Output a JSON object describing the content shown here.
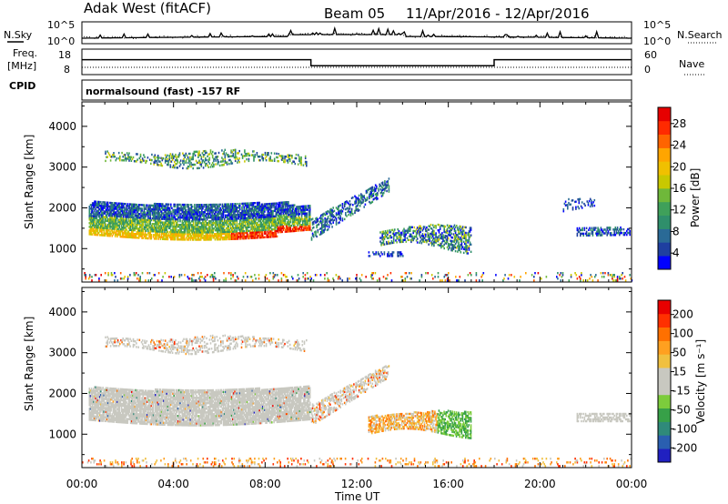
{
  "header": {
    "station": "Adak West (fitACF)",
    "beam": "Beam 05",
    "date_range": "11/Apr/2016 - 12/Apr/2016"
  },
  "noise_panel": {
    "left_label": "N.Sky",
    "right_label": "N.Search",
    "left_ticks": [
      "10^5",
      "10^0"
    ],
    "right_ticks": [
      "10^5",
      "10^0"
    ]
  },
  "freq_panel": {
    "left_label_1": "Freq.",
    "left_label_2": "[MHz]",
    "right_label": "Nave",
    "left_ticks": [
      "18",
      "8"
    ],
    "right_ticks": [
      "60",
      "0"
    ]
  },
  "cpid_panel": {
    "label": "CPID",
    "text": "normalsound (fast) -157 RF"
  },
  "x_axis": {
    "label": "Time UT",
    "ticks": [
      "00:00",
      "04:00",
      "08:00",
      "12:00",
      "16:00",
      "20:00",
      "00:00"
    ]
  },
  "power_panel": {
    "ylabel": "Slant Range [km]",
    "yticks": [
      "4000",
      "3000",
      "2000",
      "1000"
    ],
    "colorbar_label": "Power [dB]",
    "colorbar_ticks": [
      "28",
      "24",
      "20",
      "16",
      "12",
      "8",
      "4"
    ],
    "colors": [
      "#0000ff",
      "#1f3fa0",
      "#2a6a96",
      "#2f8f6b",
      "#3fa05a",
      "#6fb83a",
      "#c8c800",
      "#f0c000",
      "#ffa500",
      "#ff6400",
      "#ff2a00",
      "#e60000"
    ]
  },
  "velocity_panel": {
    "ylabel": "Slant Range [km]",
    "yticks": [
      "4000",
      "3000",
      "2000",
      "1000"
    ],
    "colorbar_label": "Velocity [m s⁻¹]",
    "colorbar_ticks": [
      "200",
      "100",
      "50",
      "15",
      "-15",
      "-50",
      "-100",
      "-200"
    ],
    "colors": [
      "#2020c0",
      "#2a5fb0",
      "#2f8a7a",
      "#37a048",
      "#7ccc3c",
      "#c8c8c0",
      "#c8c8c0",
      "#f0c040",
      "#ffa020",
      "#ff7000",
      "#ff3000",
      "#e80000"
    ]
  },
  "chart_data": {
    "type": "heatmap",
    "x_range_hours": [
      0,
      24
    ],
    "y_range_km": [
      180,
      4600
    ],
    "freq_steps": [
      {
        "start": 0,
        "end": 10,
        "freq_mhz": 15
      },
      {
        "start": 10,
        "end": 18,
        "freq_mhz": 12
      },
      {
        "start": 18,
        "end": 24,
        "freq_mhz": 15
      }
    ],
    "power_features": [
      {
        "t0": 0.3,
        "t1": 9.9,
        "r0": 1300,
        "r1": 2200,
        "power": "8-30 dB"
      },
      {
        "t0": 1.0,
        "t1": 9.8,
        "r0": 3000,
        "r1": 3400,
        "power": "8-20 dB"
      },
      {
        "t0": 10.0,
        "t1": 13.3,
        "r0": 1200,
        "r1": 2600,
        "power": "4-14 dB"
      },
      {
        "t0": 12.5,
        "t1": 17.0,
        "r0": 800,
        "r1": 1600,
        "power": "4-16 dB"
      },
      {
        "t0": 21.5,
        "t1": 23.9,
        "r0": 1300,
        "r1": 2200,
        "power": "4-12 dB"
      }
    ],
    "velocity_features": [
      {
        "t0": 0.3,
        "t1": 9.9,
        "r0": 1300,
        "r1": 2200,
        "velocity": "-15 to 15 m/s"
      },
      {
        "t0": 14.5,
        "t1": 17.0,
        "r0": 1000,
        "r1": 1600,
        "velocity": "-100 to 50 m/s"
      }
    ]
  }
}
